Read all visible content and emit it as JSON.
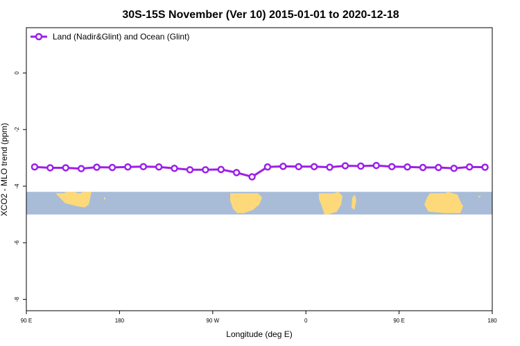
{
  "chart_data": {
    "type": "line",
    "title": "30S-15S November (Ver 10)   2015-01-01 to 2020-12-18",
    "xlabel": "Longitude (deg E)",
    "ylabel": "XCO2 - MLO trend (ppm)",
    "x_ticks": [
      {
        "pos": 90,
        "label": "90 E"
      },
      {
        "pos": 180,
        "label": "180"
      },
      {
        "pos": 270,
        "label": "90 W"
      },
      {
        "pos": 360,
        "label": "0"
      },
      {
        "pos": 450,
        "label": "90 E"
      },
      {
        "pos": 540,
        "label": "180"
      }
    ],
    "y_ticks": [
      0,
      -2,
      -4,
      -6,
      -8
    ],
    "xlim": [
      90,
      540
    ],
    "ylim": [
      -8.4,
      1.6
    ],
    "grid": false,
    "legend_position": "top-left",
    "series": [
      {
        "name": "Land (Nadir&Glint) and Ocean (Glint)",
        "color": "#9b1fe8",
        "x": [
          98,
          113,
          128,
          143,
          158,
          173,
          188,
          203,
          218,
          233,
          248,
          263,
          278,
          293,
          308,
          323,
          338,
          353,
          368,
          383,
          398,
          413,
          428,
          443,
          458,
          473,
          488,
          503,
          518,
          533
        ],
        "y": [
          -3.32,
          -3.35,
          -3.35,
          -3.38,
          -3.33,
          -3.34,
          -3.32,
          -3.31,
          -3.32,
          -3.37,
          -3.42,
          -3.42,
          -3.41,
          -3.52,
          -3.67,
          -3.32,
          -3.3,
          -3.31,
          -3.31,
          -3.33,
          -3.28,
          -3.29,
          -3.27,
          -3.31,
          -3.32,
          -3.34,
          -3.34,
          -3.37,
          -3.32,
          -3.33
        ]
      }
    ],
    "map_strip": {
      "y_range": [
        -4.2,
        -5.0
      ],
      "ocean_color": "#a8bcd8",
      "land_color": "#fdd97a"
    }
  }
}
